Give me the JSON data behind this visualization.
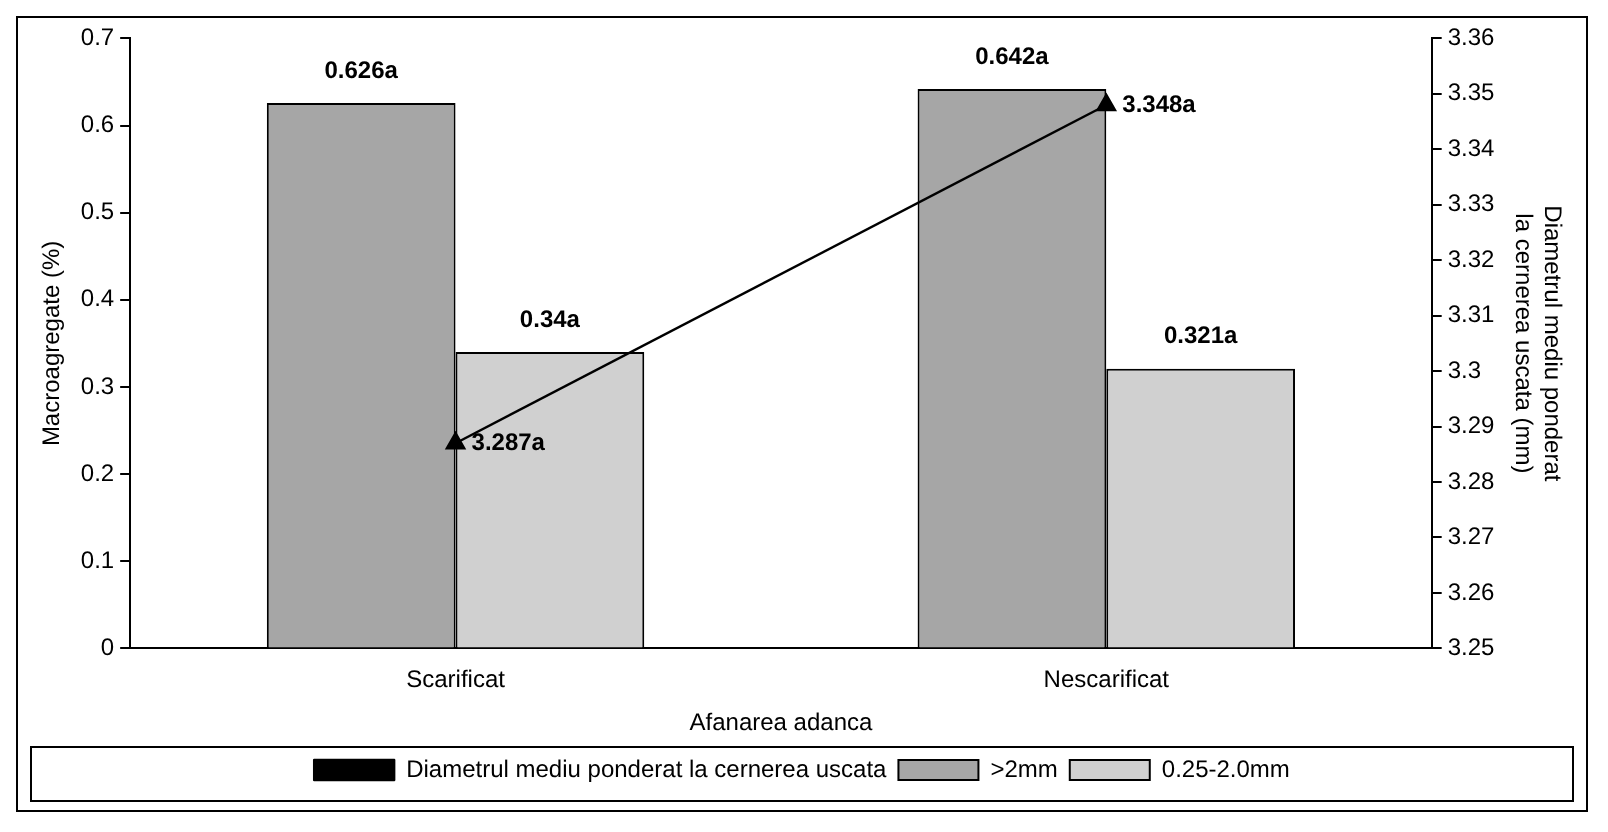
{
  "chart_data": {
    "type": "bar",
    "categories": [
      "Scarificat",
      "Nescarificat"
    ],
    "xlabel": "Afanarea adanca",
    "ylabel": "Macroagregate (%)",
    "y2label": "Diametrul mediu ponderat la cernerea uscata (mm)",
    "series": [
      {
        "name": ">2mm",
        "color": "#a6a6a6",
        "values": [
          0.626,
          0.642
        ],
        "value_labels": [
          "0.626a",
          "0.642a"
        ]
      },
      {
        "name": "0.25-2.0mm",
        "color": "#d0d0d0",
        "values": [
          0.34,
          0.321
        ],
        "value_labels": [
          "0.34a",
          "0.321a"
        ]
      },
      {
        "name": "Diametrul mediu ponderat la cernerea uscata",
        "type": "line",
        "axis": "y2",
        "color": "#000000",
        "marker": "triangle",
        "values": [
          3.287,
          3.348
        ],
        "value_labels": [
          "3.287a",
          "3.348a"
        ]
      }
    ],
    "ylim": [
      0,
      0.7
    ],
    "yticks": [
      0,
      0.1,
      0.2,
      0.3,
      0.4,
      0.5,
      0.6,
      0.7
    ],
    "y2lim": [
      3.25,
      3.36
    ],
    "y2ticks": [
      3.25,
      3.26,
      3.27,
      3.28,
      3.29,
      3.3,
      3.31,
      3.32,
      3.33,
      3.34,
      3.35,
      3.36
    ],
    "grid": false,
    "legend": "bottom"
  }
}
